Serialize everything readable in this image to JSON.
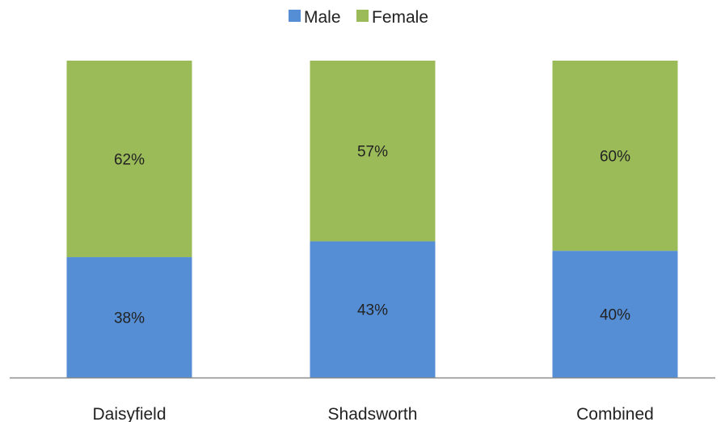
{
  "chart_data": {
    "type": "bar",
    "stacked": true,
    "normalized_percent": true,
    "categories": [
      "Daisyfield",
      "Shadsworth",
      "Combined"
    ],
    "series": [
      {
        "name": "Male",
        "color": "#558ed5",
        "values": [
          38,
          43,
          40
        ],
        "labels": [
          "38%",
          "43%",
          "40%"
        ]
      },
      {
        "name": "Female",
        "color": "#9bbb59",
        "values": [
          62,
          57,
          60
        ],
        "labels": [
          "62%",
          "57%",
          "60%"
        ]
      }
    ],
    "ylim": [
      0,
      100
    ],
    "legend_position": "top-center",
    "grid": false
  }
}
